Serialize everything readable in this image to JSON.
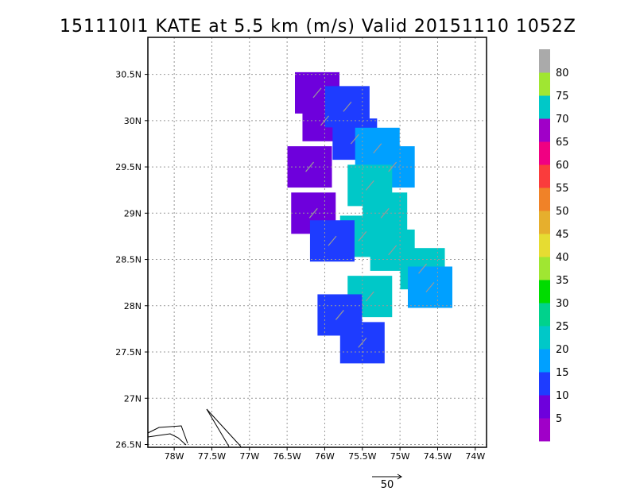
{
  "chart_data": {
    "type": "heatmap",
    "title": "151110I1 KATE at 5.5 km (m/s) Valid 20151110 1052Z",
    "x_ticks": [
      "78W",
      "77.5W",
      "77W",
      "76.5W",
      "76W",
      "75.5W",
      "75W",
      "74.5W",
      "74W"
    ],
    "y_ticks": [
      "26.5N",
      "27N",
      "27.5N",
      "28N",
      "28.5N",
      "29N",
      "29.5N",
      "30N",
      "30.5N"
    ],
    "xlim": [
      -78.35,
      -73.85
    ],
    "ylim": [
      26.47,
      30.9
    ],
    "grid": true,
    "colorbar": {
      "labels": [
        "5",
        "10",
        "15",
        "20",
        "25",
        "30",
        "35",
        "40",
        "45",
        "50",
        "55",
        "60",
        "65",
        "70",
        "75",
        "80"
      ],
      "colors": [
        "#a000c8",
        "#6e00dc",
        "#1e3cff",
        "#00a0ff",
        "#00c8c8",
        "#00d28c",
        "#00dc00",
        "#a0e632",
        "#e6dc32",
        "#e6af2d",
        "#f08228",
        "#fa3c3c",
        "#f00082",
        "#a000c8",
        "#00c8c8",
        "#a0e632",
        "#aaaaaa"
      ]
    },
    "reference_vector": {
      "label": "50"
    },
    "wind_field": [
      {
        "lon": -76.1,
        "lat": 30.3,
        "speed": 7
      },
      {
        "lon": -76.0,
        "lat": 30.0,
        "speed": 7
      },
      {
        "lon": -76.2,
        "lat": 29.5,
        "speed": 7
      },
      {
        "lon": -76.15,
        "lat": 29.0,
        "speed": 7
      },
      {
        "lon": -75.7,
        "lat": 30.15,
        "speed": 12
      },
      {
        "lon": -75.6,
        "lat": 29.8,
        "speed": 12
      },
      {
        "lon": -75.3,
        "lat": 29.7,
        "speed": 18
      },
      {
        "lon": -75.1,
        "lat": 29.5,
        "speed": 18
      },
      {
        "lon": -75.4,
        "lat": 29.3,
        "speed": 22
      },
      {
        "lon": -75.2,
        "lat": 29.0,
        "speed": 22
      },
      {
        "lon": -75.5,
        "lat": 28.75,
        "speed": 22
      },
      {
        "lon": -75.9,
        "lat": 28.7,
        "speed": 12
      },
      {
        "lon": -75.1,
        "lat": 28.6,
        "speed": 22
      },
      {
        "lon": -74.7,
        "lat": 28.4,
        "speed": 22
      },
      {
        "lon": -74.6,
        "lat": 28.2,
        "speed": 18
      },
      {
        "lon": -75.4,
        "lat": 28.1,
        "speed": 22
      },
      {
        "lon": -75.5,
        "lat": 27.6,
        "speed": 12
      },
      {
        "lon": -75.8,
        "lat": 27.9,
        "speed": 12
      }
    ]
  }
}
